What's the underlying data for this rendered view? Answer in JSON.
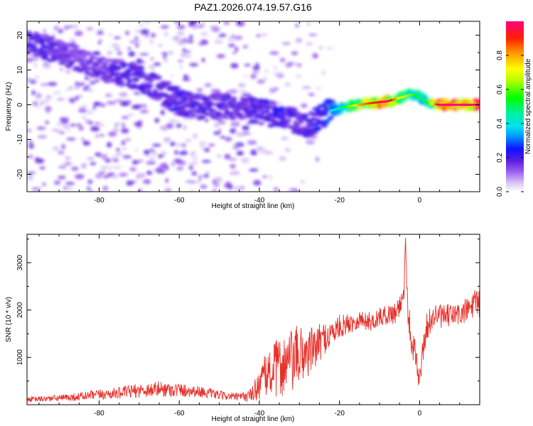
{
  "chart_data": [
    {
      "type": "heatmap",
      "title": "PAZ1.2026.074.19.57.G16",
      "xlabel": "Height of straight line (km)",
      "ylabel": "Frequency (Hz)",
      "xlim": [
        -98,
        15
      ],
      "ylim": [
        -25,
        24
      ],
      "xticks": [
        -80,
        -60,
        -40,
        -20,
        0
      ],
      "xtick_labels": [
        "-80",
        "-60",
        "-40",
        "-20",
        "0"
      ],
      "yticks": [
        20,
        10,
        0,
        -10,
        -20
      ],
      "ytick_labels": [
        "20",
        "10",
        "0",
        "-10",
        "-20"
      ],
      "colorbar": {
        "label": "Normalized spectral amplitude",
        "range": [
          0.0,
          1.0
        ],
        "ticks": [
          0.0,
          0.2,
          0.4,
          0.6,
          0.8
        ],
        "tick_labels": [
          "0.0",
          "0.2",
          "0.4",
          "0.6",
          "0.8"
        ],
        "colormap": "hsv-rainbow (white-lavender-purple-blue-cyan-green-yellow-orange-red-magenta)"
      },
      "ridge": [
        {
          "x": -90,
          "y": 15,
          "amp": 0.2
        },
        {
          "x": -85,
          "y": 13,
          "amp": 0.18
        },
        {
          "x": -80,
          "y": 11,
          "amp": 0.2
        },
        {
          "x": -75,
          "y": 9,
          "amp": 0.22
        },
        {
          "x": -70,
          "y": 8,
          "amp": 0.22
        },
        {
          "x": -65,
          "y": 4,
          "amp": 0.22
        },
        {
          "x": -60,
          "y": 1,
          "amp": 0.25
        },
        {
          "x": -55,
          "y": -1,
          "amp": 0.22
        },
        {
          "x": -50,
          "y": 0,
          "amp": 0.22
        },
        {
          "x": -45,
          "y": -1,
          "amp": 0.2
        },
        {
          "x": -40,
          "y": -2,
          "amp": 0.22
        },
        {
          "x": -35,
          "y": -3,
          "amp": 0.25
        },
        {
          "x": -30,
          "y": -5,
          "amp": 0.22
        },
        {
          "x": -28,
          "y": -6,
          "amp": 0.22
        },
        {
          "x": -26,
          "y": -5,
          "amp": 0.25
        },
        {
          "x": -23,
          "y": -2,
          "amp": 0.3
        },
        {
          "x": -20,
          "y": -1,
          "amp": 0.4
        },
        {
          "x": -18,
          "y": -0.5,
          "amp": 0.55
        },
        {
          "x": -15,
          "y": 0,
          "amp": 0.75
        },
        {
          "x": -12,
          "y": 0.5,
          "amp": 0.85
        },
        {
          "x": -8,
          "y": 1,
          "amp": 0.95
        },
        {
          "x": -5,
          "y": 2,
          "amp": 0.65
        },
        {
          "x": -2,
          "y": 3,
          "amp": 0.55
        },
        {
          "x": 0,
          "y": 2,
          "amp": 0.45
        },
        {
          "x": 2,
          "y": 0.5,
          "amp": 0.5
        },
        {
          "x": 5,
          "y": 0,
          "amp": 0.95
        },
        {
          "x": 10,
          "y": 0,
          "amp": 1.0
        },
        {
          "x": 15,
          "y": 0,
          "amp": 0.95
        }
      ]
    },
    {
      "type": "line",
      "title": "",
      "xlabel": "Height of straight line (km)",
      "ylabel": "SNR (10 * v/v)",
      "xlim": [
        -98,
        15
      ],
      "ylim": [
        0,
        3600
      ],
      "xticks": [
        -80,
        -60,
        -40,
        -20,
        0
      ],
      "xtick_labels": [
        "-80",
        "-60",
        "-40",
        "-20",
        "0"
      ],
      "yticks": [
        1000,
        2000,
        3000
      ],
      "ytick_labels": [
        "1000",
        "2000",
        "3000"
      ],
      "series": [
        {
          "name": "SNR",
          "color": "#e8302a",
          "x": [
            -98,
            -95,
            -90,
            -85,
            -80,
            -75,
            -70,
            -65,
            -60,
            -55,
            -50,
            -45,
            -42,
            -40,
            -38,
            -35,
            -32,
            -30,
            -28,
            -26,
            -24,
            -22,
            -20,
            -18,
            -15,
            -12,
            -10,
            -8,
            -6,
            -5,
            -4,
            -3.5,
            -3,
            -2,
            -1,
            0,
            1,
            2,
            4,
            6,
            8,
            10,
            12,
            14,
            15
          ],
          "y": [
            110,
            120,
            140,
            170,
            210,
            250,
            300,
            330,
            310,
            280,
            200,
            160,
            200,
            450,
            650,
            800,
            900,
            1050,
            1100,
            1200,
            1400,
            1500,
            1650,
            1700,
            1800,
            1750,
            1850,
            1900,
            1950,
            2100,
            2300,
            3500,
            2000,
            1400,
            1000,
            500,
            1300,
            1700,
            1900,
            1850,
            1900,
            1900,
            2000,
            2150,
            2100
          ],
          "noise_amplitude": [
            60,
            60,
            70,
            90,
            110,
            120,
            150,
            170,
            150,
            120,
            90,
            80,
            150,
            350,
            500,
            650,
            700,
            650,
            550,
            450,
            350,
            300,
            250,
            220,
            200,
            200,
            200,
            200,
            250,
            300,
            400,
            100,
            400,
            350,
            300,
            250,
            300,
            300,
            260,
            250,
            250,
            260,
            280,
            300,
            300
          ]
        }
      ]
    }
  ]
}
